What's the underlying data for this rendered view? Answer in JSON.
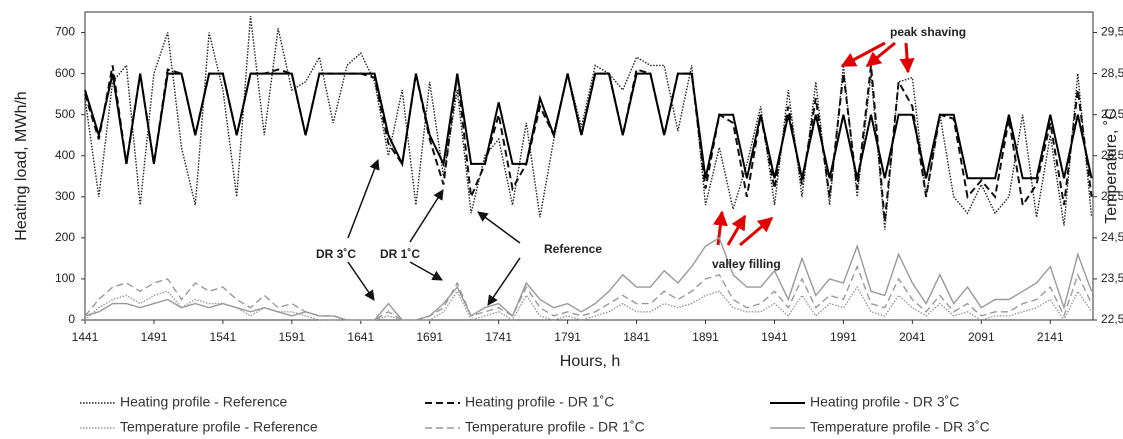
{
  "chart_data": {
    "type": "line",
    "xlabel": "Hours, h",
    "ylabel": "Heating load, MWh/h",
    "y2label": "Temperature, ˚C",
    "x": [
      1441,
      1451,
      1461,
      1471,
      1481,
      1491,
      1501,
      1511,
      1521,
      1531,
      1541,
      1551,
      1561,
      1571,
      1581,
      1591,
      1601,
      1611,
      1621,
      1631,
      1641,
      1651,
      1661,
      1671,
      1681,
      1691,
      1701,
      1711,
      1721,
      1731,
      1741,
      1751,
      1761,
      1771,
      1781,
      1791,
      1801,
      1811,
      1821,
      1831,
      1841,
      1851,
      1861,
      1871,
      1881,
      1891,
      1901,
      1911,
      1921,
      1931,
      1941,
      1951,
      1961,
      1971,
      1981,
      1991,
      2001,
      2011,
      2021,
      2031,
      2041,
      2051,
      2061,
      2071,
      2081,
      2091,
      2101,
      2111,
      2121,
      2131,
      2141,
      2151,
      2161,
      2171
    ],
    "xlim": [
      1441,
      2172
    ],
    "xticks": [
      1441,
      1491,
      1541,
      1591,
      1641,
      1691,
      1741,
      1791,
      1841,
      1891,
      1941,
      1991,
      2041,
      2091,
      2141
    ],
    "ylim": [
      0,
      750
    ],
    "yticks": [
      0,
      100,
      200,
      300,
      400,
      500,
      600,
      700
    ],
    "y2lim": [
      22.5,
      30
    ],
    "y2ticks": [
      {
        "value": 22.5,
        "label": "22,5"
      },
      {
        "value": 23.5,
        "label": "23,5"
      },
      {
        "value": 24.5,
        "label": "24,5"
      },
      {
        "value": 25.5,
        "label": "25,5"
      },
      {
        "value": 26.5,
        "label": "26,5"
      },
      {
        "value": 27.5,
        "label": "27,5"
      },
      {
        "value": 28.5,
        "label": "28,5"
      },
      {
        "value": 29.5,
        "label": "29,5"
      }
    ],
    "series": [
      {
        "name": "Heating profile - Reference",
        "color": "#222222",
        "style": "dotted",
        "values": [
          540,
          300,
          580,
          620,
          280,
          600,
          700,
          420,
          280,
          700,
          560,
          300,
          740,
          450,
          710,
          560,
          580,
          640,
          480,
          620,
          650,
          580,
          400,
          560,
          280,
          580,
          350,
          560,
          260,
          400,
          440,
          280,
          480,
          250,
          440,
          600,
          470,
          620,
          600,
          560,
          640,
          620,
          620,
          460,
          620,
          280,
          420,
          270,
          380,
          520,
          280,
          560,
          300,
          580,
          280,
          620,
          300,
          600,
          220,
          580,
          590,
          300,
          500,
          300,
          260,
          330,
          260,
          300,
          500,
          250,
          450,
          230,
          600,
          250
        ]
      },
      {
        "name": "Heating profile - DR 1˚C",
        "color": "#111111",
        "style": "dashed",
        "values": [
          550,
          440,
          620,
          380,
          600,
          380,
          610,
          600,
          450,
          600,
          600,
          450,
          600,
          600,
          610,
          600,
          450,
          600,
          600,
          600,
          600,
          590,
          430,
          380,
          600,
          440,
          330,
          600,
          300,
          380,
          500,
          320,
          380,
          520,
          450,
          600,
          450,
          600,
          600,
          450,
          610,
          600,
          450,
          600,
          600,
          320,
          500,
          480,
          300,
          500,
          320,
          520,
          330,
          540,
          300,
          600,
          320,
          620,
          240,
          580,
          520,
          300,
          500,
          490,
          300,
          340,
          300,
          490,
          280,
          330,
          480,
          280,
          560,
          300
        ]
      },
      {
        "name": "Heating profile - DR 3˚C",
        "color": "#000000",
        "style": "solid",
        "values": [
          560,
          450,
          600,
          380,
          600,
          380,
          600,
          600,
          450,
          600,
          600,
          450,
          600,
          600,
          600,
          600,
          450,
          600,
          600,
          600,
          600,
          600,
          450,
          380,
          600,
          450,
          380,
          600,
          380,
          380,
          530,
          380,
          380,
          540,
          450,
          600,
          450,
          600,
          600,
          450,
          600,
          600,
          450,
          600,
          600,
          345,
          500,
          500,
          345,
          500,
          345,
          500,
          345,
          500,
          345,
          500,
          345,
          500,
          345,
          500,
          500,
          345,
          500,
          500,
          345,
          345,
          345,
          500,
          345,
          345,
          500,
          345,
          500,
          345
        ]
      },
      {
        "name": "Temperature profile - Reference",
        "color": "#999999",
        "style": "dotted",
        "axis": "y2",
        "values": [
          22.5,
          22.8,
          23.0,
          23.1,
          22.9,
          23.1,
          23.2,
          22.8,
          23.0,
          22.9,
          22.9,
          22.8,
          22.6,
          22.8,
          22.7,
          22.7,
          22.6,
          22.5,
          22.5,
          22.5,
          22.5,
          22.5,
          22.6,
          22.5,
          22.5,
          22.5,
          22.7,
          23.2,
          22.5,
          22.6,
          22.7,
          22.5,
          23.1,
          22.6,
          22.5,
          22.6,
          22.5,
          22.6,
          22.7,
          22.9,
          22.7,
          22.7,
          22.9,
          22.8,
          22.9,
          23.1,
          23.2,
          22.8,
          22.7,
          22.7,
          22.9,
          22.6,
          23.1,
          22.6,
          22.9,
          22.8,
          23.3,
          22.7,
          22.6,
          23.1,
          22.8,
          22.6,
          22.9,
          22.6,
          22.7,
          22.5,
          22.6,
          22.6,
          22.7,
          22.8,
          23.0,
          22.5,
          23.2,
          22.7
        ]
      },
      {
        "name": "Temperature profile - DR 1˚C",
        "color": "#999999",
        "style": "dashed",
        "axis": "y2",
        "values": [
          22.6,
          23.0,
          23.3,
          23.4,
          23.2,
          23.4,
          23.5,
          23.0,
          23.4,
          23.2,
          23.3,
          23.0,
          22.8,
          23.1,
          22.8,
          22.9,
          22.7,
          22.6,
          22.6,
          22.5,
          22.5,
          22.5,
          22.7,
          22.5,
          22.5,
          22.6,
          22.8,
          23.4,
          22.6,
          22.7,
          22.8,
          22.6,
          23.3,
          22.8,
          22.6,
          22.7,
          22.6,
          22.7,
          22.9,
          23.1,
          22.9,
          22.9,
          23.2,
          23.0,
          23.2,
          23.5,
          23.6,
          23.0,
          22.8,
          22.9,
          23.2,
          22.8,
          23.5,
          22.8,
          23.1,
          23.0,
          23.8,
          22.9,
          22.8,
          23.5,
          23.0,
          22.7,
          23.1,
          22.7,
          22.9,
          22.6,
          22.7,
          22.7,
          22.9,
          23.0,
          23.3,
          22.6,
          23.6,
          22.9
        ]
      },
      {
        "name": "Temperature profile - DR 3˚C",
        "color": "#999999",
        "style": "solid",
        "axis": "y2",
        "values": [
          22.6,
          22.7,
          22.9,
          22.9,
          22.8,
          22.9,
          23.0,
          22.8,
          22.9,
          22.8,
          22.9,
          22.8,
          22.7,
          22.8,
          22.7,
          22.6,
          22.7,
          22.6,
          22.6,
          22.5,
          22.5,
          22.5,
          22.9,
          22.5,
          22.5,
          22.6,
          22.9,
          23.3,
          22.6,
          22.8,
          22.9,
          22.6,
          23.4,
          23.0,
          22.8,
          22.9,
          22.7,
          22.9,
          23.2,
          23.6,
          23.3,
          23.3,
          23.7,
          23.4,
          23.8,
          24.3,
          24.5,
          23.6,
          23.3,
          23.3,
          23.7,
          23.0,
          24.0,
          23.1,
          23.5,
          23.4,
          24.3,
          23.2,
          23.1,
          24.1,
          23.4,
          22.9,
          23.6,
          22.9,
          23.3,
          22.8,
          23.0,
          23.0,
          23.2,
          23.4,
          23.8,
          22.8,
          24.1,
          23.2
        ]
      }
    ],
    "annotations": [
      {
        "text": "peak shaving",
        "color": "#e00000"
      },
      {
        "text": "valley filling",
        "color": "#e00000"
      },
      {
        "text": "DR 3˚C",
        "color": "#222222"
      },
      {
        "text": "DR 1˚C",
        "color": "#222222"
      },
      {
        "text": "Reference",
        "color": "#222222"
      }
    ]
  }
}
